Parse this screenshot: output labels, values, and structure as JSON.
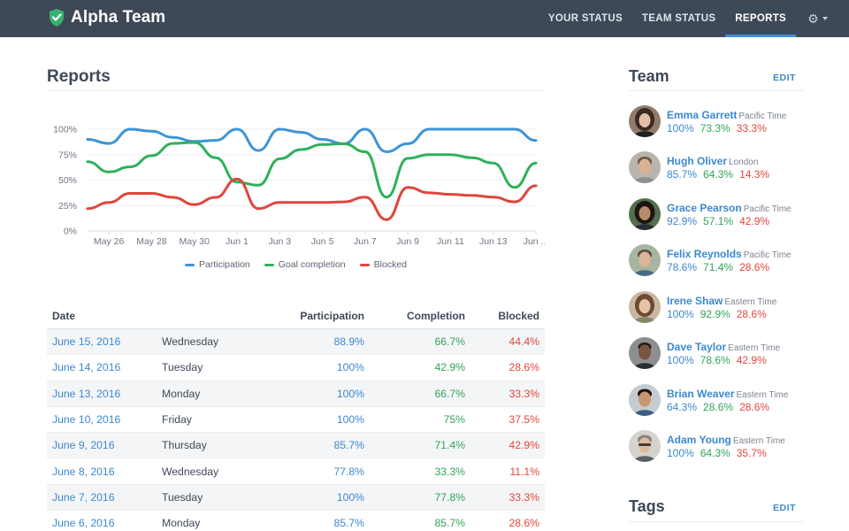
{
  "app": {
    "name": "Alpha Team",
    "nav": [
      {
        "label": "YOUR STATUS"
      },
      {
        "label": "TEAM STATUS"
      },
      {
        "label": "REPORTS"
      }
    ],
    "colors": {
      "topbar": "#3e4958",
      "accent": "#3d8fd8",
      "logo": "#37b26c"
    }
  },
  "reports": {
    "title": "Reports",
    "table": {
      "headers": {
        "date": "Date",
        "participation": "Participation",
        "completion": "Completion",
        "blocked": "Blocked"
      },
      "rows": [
        {
          "date": "June 15, 2016",
          "day": "Wednesday",
          "participation": "88.9%",
          "completion": "66.7%",
          "blocked": "44.4%"
        },
        {
          "date": "June 14, 2016",
          "day": "Tuesday",
          "participation": "100%",
          "completion": "42.9%",
          "blocked": "28.6%"
        },
        {
          "date": "June 13, 2016",
          "day": "Monday",
          "participation": "100%",
          "completion": "66.7%",
          "blocked": "33.3%"
        },
        {
          "date": "June 10, 2016",
          "day": "Friday",
          "participation": "100%",
          "completion": "75%",
          "blocked": "37.5%"
        },
        {
          "date": "June 9, 2016",
          "day": "Thursday",
          "participation": "85.7%",
          "completion": "71.4%",
          "blocked": "42.9%"
        },
        {
          "date": "June 8, 2016",
          "day": "Wednesday",
          "participation": "77.8%",
          "completion": "33.3%",
          "blocked": "11.1%"
        },
        {
          "date": "June 7, 2016",
          "day": "Tuesday",
          "participation": "100%",
          "completion": "77.8%",
          "blocked": "33.3%"
        },
        {
          "date": "June 6, 2016",
          "day": "Monday",
          "participation": "85.7%",
          "completion": "85.7%",
          "blocked": "28.6%"
        }
      ]
    }
  },
  "chart_data": {
    "type": "line",
    "x": [
      "May 25",
      "May 26",
      "May 27",
      "May 28",
      "May 29",
      "May 30",
      "May 31",
      "Jun 1",
      "Jun 2",
      "Jun 3",
      "Jun 4",
      "Jun 5",
      "Jun 6",
      "Jun 7",
      "Jun 8",
      "Jun 9",
      "Jun 10",
      "Jun 11",
      "Jun 12",
      "Jun 13",
      "Jun 14",
      "Jun 15"
    ],
    "x_tick_labels": [
      "May 26",
      "May 28",
      "May 30",
      "Jun 1",
      "Jun 3",
      "Jun 5",
      "Jun 7",
      "Jun 9",
      "Jun 11",
      "Jun 13",
      "Jun ..."
    ],
    "y_tick_labels": [
      "0%",
      "25%",
      "50%",
      "75%",
      "100%"
    ],
    "ylim": [
      0,
      100
    ],
    "grid": true,
    "legend_position": "bottom",
    "series": [
      {
        "name": "Participation",
        "color": "#3d94d6",
        "values": [
          90,
          86,
          100,
          98,
          92,
          88,
          89,
          100,
          79,
          100,
          97,
          90,
          85.7,
          100,
          77.8,
          85.7,
          100,
          100,
          100,
          100,
          100,
          88.9
        ]
      },
      {
        "name": "Goal completion",
        "color": "#2fb05a",
        "values": [
          68,
          58,
          63,
          74,
          86,
          87,
          72,
          48,
          45,
          71,
          80,
          85,
          85.7,
          77.8,
          33.3,
          71.4,
          75,
          75,
          72,
          66.7,
          42.9,
          66.7
        ]
      },
      {
        "name": "Blocked",
        "color": "#e0453d",
        "values": [
          22,
          28,
          37,
          37,
          33,
          26,
          33,
          51,
          22,
          28,
          28,
          28,
          28.6,
          33.3,
          11.1,
          42.9,
          37.5,
          36,
          35,
          33.3,
          28.6,
          44.4
        ]
      }
    ]
  },
  "team": {
    "title": "Team",
    "edit": "EDIT",
    "members": [
      {
        "name": "Emma Garrett",
        "tz": "Pacific Time",
        "participation": "100%",
        "completion": "73.3%",
        "blocked": "33.3%"
      },
      {
        "name": "Hugh Oliver",
        "tz": "London",
        "participation": "85.7%",
        "completion": "64.3%",
        "blocked": "14.3%"
      },
      {
        "name": "Grace Pearson",
        "tz": "Pacific Time",
        "participation": "92.9%",
        "completion": "57.1%",
        "blocked": "42.9%"
      },
      {
        "name": "Felix Reynolds",
        "tz": "Pacific Time",
        "participation": "78.6%",
        "completion": "71.4%",
        "blocked": "28.6%"
      },
      {
        "name": "Irene Shaw",
        "tz": "Eastern Time",
        "participation": "100%",
        "completion": "92.9%",
        "blocked": "28.6%"
      },
      {
        "name": "Dave Taylor",
        "tz": "Eastern Time",
        "participation": "100%",
        "completion": "78.6%",
        "blocked": "42.9%"
      },
      {
        "name": "Brian Weaver",
        "tz": "Eastern Time",
        "participation": "64.3%",
        "completion": "28.6%",
        "blocked": "28.6%"
      },
      {
        "name": "Adam Young",
        "tz": "Eastern Time",
        "participation": "100%",
        "completion": "64.3%",
        "blocked": "35.7%"
      }
    ]
  },
  "tags": {
    "title": "Tags",
    "edit": "EDIT"
  }
}
